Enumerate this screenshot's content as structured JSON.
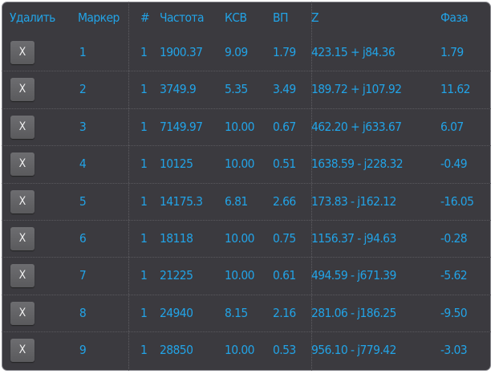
{
  "headers": {
    "delete": "Удалить",
    "marker": "Маркер",
    "num": "#",
    "freq": "Частота",
    "swr": "КСВ",
    "rl": "ВП",
    "z": "Z",
    "phase": "Фаза"
  },
  "delete_label": "X",
  "rows": [
    {
      "marker": "1",
      "num": "1",
      "freq": "1900.37",
      "swr": "9.09",
      "rl": "1.79",
      "z": "423.15 + j84.36",
      "phase": "1.79"
    },
    {
      "marker": "2",
      "num": "1",
      "freq": "3749.9",
      "swr": "5.35",
      "rl": "3.49",
      "z": "189.72 + j107.92",
      "phase": "11.62"
    },
    {
      "marker": "3",
      "num": "1",
      "freq": "7149.97",
      "swr": "10.00",
      "rl": "0.67",
      "z": "462.20 + j633.67",
      "phase": "6.07"
    },
    {
      "marker": "4",
      "num": "1",
      "freq": "10125",
      "swr": "10.00",
      "rl": "0.51",
      "z": "1638.59 - j228.32",
      "phase": "-0.49"
    },
    {
      "marker": "5",
      "num": "1",
      "freq": "14175.3",
      "swr": "6.81",
      "rl": "2.66",
      "z": "173.83 - j162.12",
      "phase": "-16.05"
    },
    {
      "marker": "6",
      "num": "1",
      "freq": "18118",
      "swr": "10.00",
      "rl": "0.75",
      "z": "1156.37 - j94.63",
      "phase": "-0.28"
    },
    {
      "marker": "7",
      "num": "1",
      "freq": "21225",
      "swr": "10.00",
      "rl": "0.61",
      "z": "494.59 - j671.39",
      "phase": "-5.62"
    },
    {
      "marker": "8",
      "num": "1",
      "freq": "24940",
      "swr": "8.15",
      "rl": "2.16",
      "z": "281.06 - j186.25",
      "phase": "-9.50"
    },
    {
      "marker": "9",
      "num": "1",
      "freq": "28850",
      "swr": "10.00",
      "rl": "0.53",
      "z": "956.10 - j779.42",
      "phase": "-3.03"
    }
  ]
}
